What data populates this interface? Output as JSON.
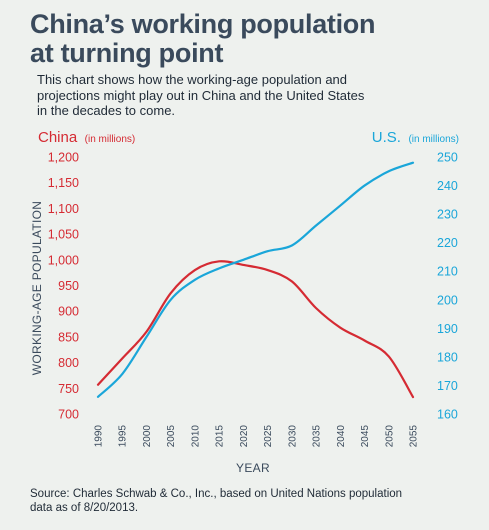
{
  "header": {
    "title_line1": "China’s working population",
    "title_line2": "at turning point",
    "subtitle_line1": "This chart shows how the working-age population and",
    "subtitle_line2": "projections might play out in China and the United States",
    "subtitle_line3": "in the decades to come."
  },
  "footer": {
    "source_line1": "Source: Charles Schwab & Co., Inc., based on United Nations population",
    "source_line2": "data as of 8/20/2013."
  },
  "colors": {
    "china": "#d52b33",
    "us": "#1aa6d9",
    "text": "#3a4a5c"
  },
  "chart_data": {
    "type": "line",
    "xlabel": "YEAR",
    "ylabel": "WORKING-AGE POPULATION",
    "x": [
      1990,
      1995,
      2000,
      2005,
      2010,
      2015,
      2020,
      2025,
      2030,
      2035,
      2040,
      2045,
      2050,
      2055
    ],
    "left_axis": {
      "label": "China",
      "unit": "(in millions)",
      "ylim": [
        700,
        1200
      ],
      "ticks": [
        "700",
        "750",
        "800",
        "850",
        "900",
        "950",
        "1,000",
        "1,050",
        "1,100",
        "1,150",
        "1,200"
      ]
    },
    "right_axis": {
      "label": "U.S.",
      "unit": "(in millions)",
      "ylim": [
        160,
        250
      ],
      "ticks": [
        "160",
        "170",
        "180",
        "190",
        "200",
        "210",
        "220",
        "230",
        "240",
        "250"
      ]
    },
    "series": [
      {
        "name": "China",
        "axis": "left",
        "values": [
          757,
          808,
          860,
          935,
          980,
          997,
          990,
          980,
          958,
          906,
          868,
          843,
          812,
          733
        ]
      },
      {
        "name": "U.S.",
        "axis": "right",
        "values": [
          166,
          174,
          187,
          200,
          207,
          211,
          214,
          217,
          219,
          226,
          233,
          240,
          245,
          248
        ]
      }
    ]
  }
}
